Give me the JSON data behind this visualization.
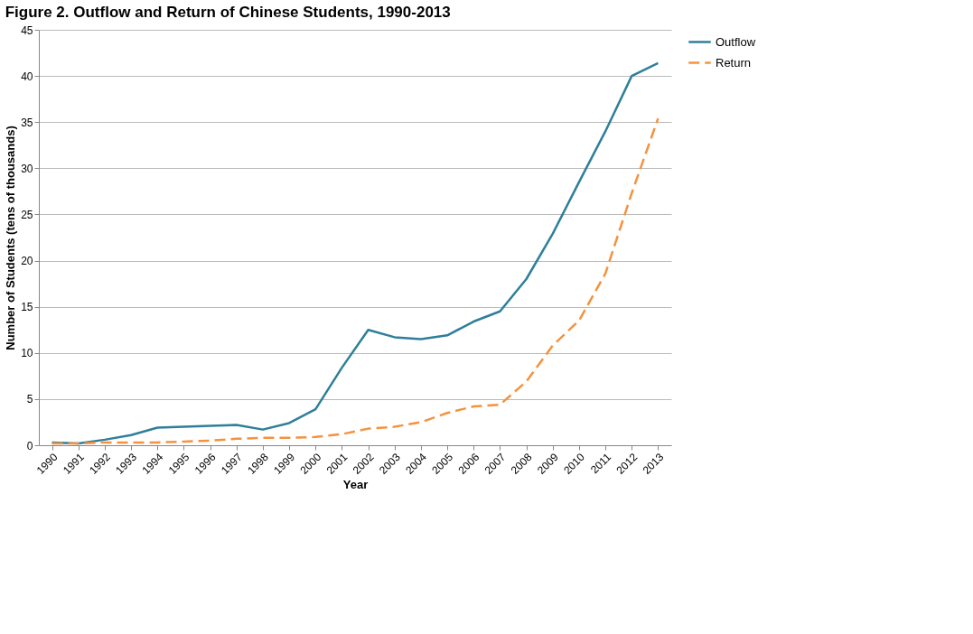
{
  "chart_data": {
    "type": "line",
    "title": "Figure 2. Outflow and Return of Chinese Students, 1990-2013",
    "xlabel": "Year",
    "ylabel": "Number of Students (tens of thousands)",
    "categories": [
      "1990",
      "1991",
      "1992",
      "1993",
      "1994",
      "1995",
      "1996",
      "1997",
      "1998",
      "1999",
      "2000",
      "2001",
      "2002",
      "2003",
      "2004",
      "2005",
      "2006",
      "2007",
      "2008",
      "2009",
      "2010",
      "2011",
      "2012",
      "2013"
    ],
    "series": [
      {
        "name": "Outflow",
        "color": "#2e7f9a",
        "line_style": "solid",
        "values": [
          0.3,
          0.2,
          0.6,
          1.1,
          1.9,
          2.0,
          2.1,
          2.2,
          1.7,
          2.4,
          3.9,
          8.4,
          12.5,
          11.7,
          11.5,
          11.9,
          13.4,
          14.5,
          18.0,
          22.9,
          28.5,
          34.0,
          40.0,
          41.4
        ]
      },
      {
        "name": "Return",
        "color": "#f5923e",
        "line_style": "dashed",
        "values": [
          0.2,
          0.2,
          0.3,
          0.3,
          0.3,
          0.4,
          0.5,
          0.7,
          0.8,
          0.8,
          0.9,
          1.2,
          1.8,
          2.0,
          2.5,
          3.5,
          4.2,
          4.4,
          6.9,
          10.8,
          13.5,
          18.6,
          27.3,
          35.4
        ]
      }
    ],
    "ylim": [
      0,
      45
    ],
    "yticks": [
      0,
      5,
      10,
      15,
      20,
      25,
      30,
      35,
      40,
      45
    ],
    "grid": "y",
    "legend": "right",
    "marker": "none"
  }
}
